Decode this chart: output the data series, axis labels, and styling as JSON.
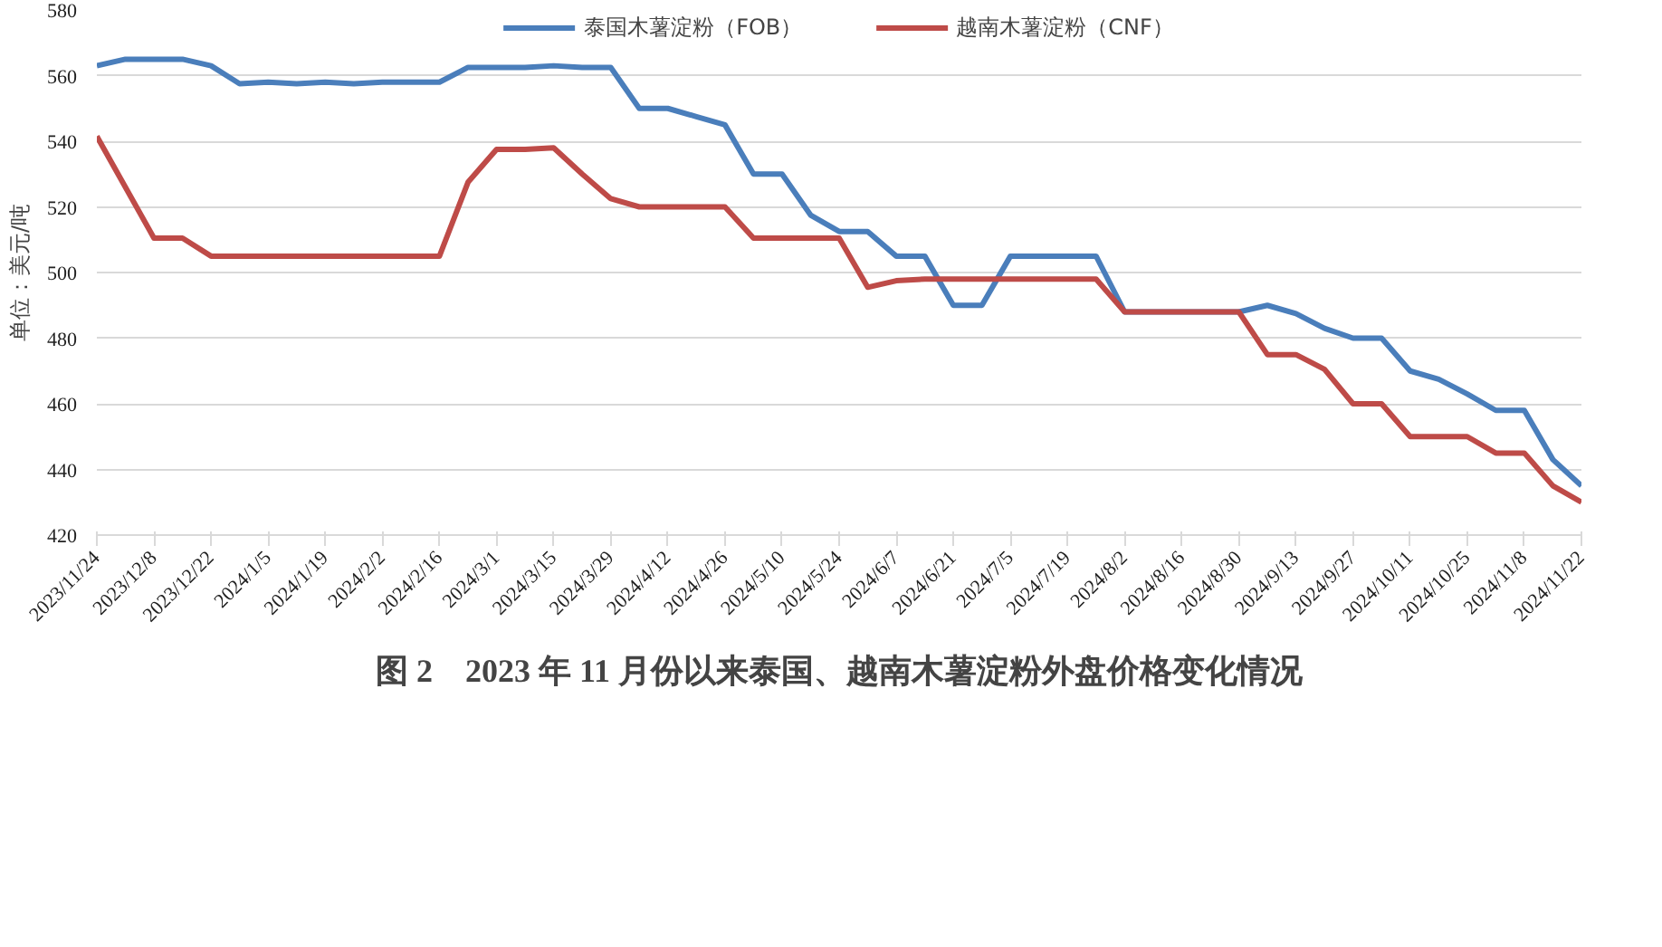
{
  "chart_data": {
    "type": "line",
    "title": "图 2　2023 年 11 月份以来泰国、越南木薯淀粉外盘价格变化情况",
    "ylabel": "单位：美元/吨",
    "x": [
      "2023-11-24",
      "2023-12-01",
      "2023-12-08",
      "2023-12-15",
      "2023-12-22",
      "2023-12-29",
      "2024-01-05",
      "2024-01-12",
      "2024-01-19",
      "2024-01-26",
      "2024-02-02",
      "2024-02-09",
      "2024-02-16",
      "2024-02-23",
      "2024-03-01",
      "2024-03-08",
      "2024-03-15",
      "2024-03-22",
      "2024-03-29",
      "2024-04-05",
      "2024-04-12",
      "2024-04-19",
      "2024-04-26",
      "2024-05-03",
      "2024-05-10",
      "2024-05-17",
      "2024-05-24",
      "2024-05-31",
      "2024-06-07",
      "2024-06-14",
      "2024-06-21",
      "2024-06-28",
      "2024-07-05",
      "2024-07-12",
      "2024-07-19",
      "2024-07-26",
      "2024-08-02",
      "2024-08-09",
      "2024-08-16",
      "2024-08-23",
      "2024-08-30",
      "2024-09-06",
      "2024-09-13",
      "2024-09-20",
      "2024-09-27",
      "2024-10-04",
      "2024-10-11",
      "2024-10-18",
      "2024-10-25",
      "2024-11-01",
      "2024-11-08",
      "2024-11-15",
      "2024-11-22"
    ],
    "series": [
      {
        "name": "泰国木薯淀粉（FOB）",
        "color": "#4a7ebb",
        "values": [
          563,
          565,
          565,
          565,
          563,
          557.5,
          558,
          557.5,
          558,
          557.5,
          558,
          558,
          558,
          562.5,
          562.5,
          562.5,
          563,
          562.5,
          562.5,
          550,
          550,
          547.5,
          545,
          530,
          530,
          517.5,
          512.5,
          512.5,
          505,
          505,
          490,
          490,
          505,
          505,
          505,
          505,
          488,
          488,
          488,
          488,
          488,
          490,
          487.5,
          483,
          480,
          480,
          470,
          467.5,
          463,
          458,
          458,
          443,
          435
        ]
      },
      {
        "name": "越南木薯淀粉（CNF）",
        "color": "#be4b48",
        "values": [
          541.5,
          526,
          510.5,
          510.5,
          505,
          505,
          505,
          505,
          505,
          505,
          505,
          505,
          505,
          527.5,
          537.5,
          537.5,
          538,
          530,
          522.5,
          520,
          520,
          520,
          520,
          510.5,
          510.5,
          510.5,
          510.5,
          495.5,
          497.5,
          498,
          498,
          498,
          498,
          498,
          498,
          498,
          488,
          488,
          488,
          488,
          488,
          475,
          475,
          470.5,
          460,
          460,
          450,
          450,
          450,
          445,
          445,
          435,
          430
        ]
      }
    ],
    "xlim": [
      "2023-11-24",
      "2024-11-22"
    ],
    "xticks": [
      {
        "value": "2023-11-24",
        "label": "2023/11/24"
      },
      {
        "value": "2023-12-08",
        "label": "2023/12/8"
      },
      {
        "value": "2023-12-22",
        "label": "2023/12/22"
      },
      {
        "value": "2024-01-05",
        "label": "2024/1/5"
      },
      {
        "value": "2024-01-19",
        "label": "2024/1/19"
      },
      {
        "value": "2024-02-02",
        "label": "2024/2/2"
      },
      {
        "value": "2024-02-16",
        "label": "2024/2/16"
      },
      {
        "value": "2024-03-01",
        "label": "2024/3/1"
      },
      {
        "value": "2024-03-15",
        "label": "2024/3/15"
      },
      {
        "value": "2024-03-29",
        "label": "2024/3/29"
      },
      {
        "value": "2024-04-12",
        "label": "2024/4/12"
      },
      {
        "value": "2024-04-26",
        "label": "2024/4/26"
      },
      {
        "value": "2024-05-10",
        "label": "2024/5/10"
      },
      {
        "value": "2024-05-24",
        "label": "2024/5/24"
      },
      {
        "value": "2024-06-07",
        "label": "2024/6/7"
      },
      {
        "value": "2024-06-21",
        "label": "2024/6/21"
      },
      {
        "value": "2024-07-05",
        "label": "2024/7/5"
      },
      {
        "value": "2024-07-19",
        "label": "2024/7/19"
      },
      {
        "value": "2024-08-02",
        "label": "2024/8/2"
      },
      {
        "value": "2024-08-16",
        "label": "2024/8/16"
      },
      {
        "value": "2024-08-30",
        "label": "2024/8/30"
      },
      {
        "value": "2024-09-13",
        "label": "2024/9/13"
      },
      {
        "value": "2024-09-27",
        "label": "2024/9/27"
      },
      {
        "value": "2024-10-11",
        "label": "2024/10/11"
      },
      {
        "value": "2024-10-25",
        "label": "2024/10/25"
      },
      {
        "value": "2024-11-08",
        "label": "2024/11/8"
      },
      {
        "value": "2024-11-22",
        "label": "2024/11/22"
      }
    ],
    "ylim": [
      420,
      580
    ],
    "yticks": [
      420,
      440,
      460,
      480,
      500,
      520,
      540,
      560,
      580
    ],
    "grid": "y",
    "legend": "top",
    "marker": "none",
    "line_style": "solid"
  }
}
